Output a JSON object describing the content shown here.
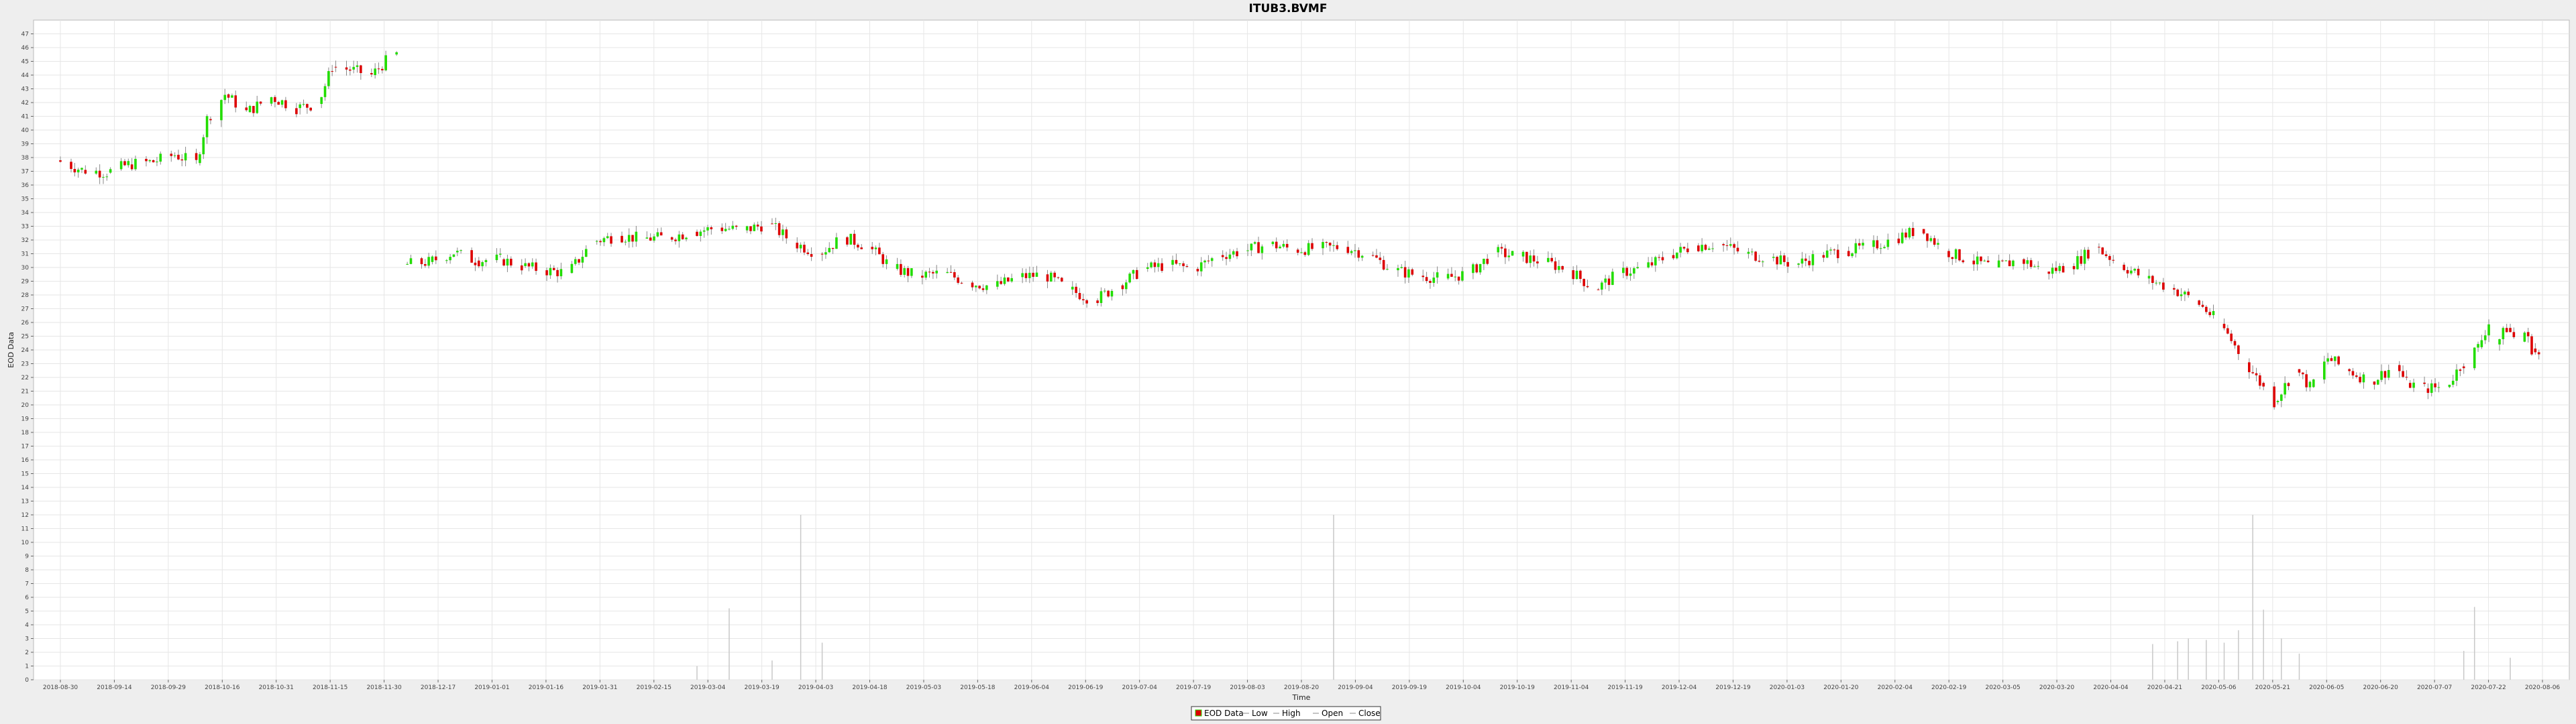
{
  "chart_data": {
    "type": "candlestick",
    "title": "ITUB3.BVMF",
    "xlabel": "Time",
    "ylabel": "EOD Data",
    "ylim": [
      0,
      48
    ],
    "yticks": [
      0,
      1,
      2,
      3,
      4,
      5,
      6,
      7,
      8,
      9,
      10,
      11,
      12,
      13,
      14,
      15,
      16,
      17,
      18,
      19,
      20,
      21,
      22,
      23,
      24,
      25,
      26,
      27,
      28,
      29,
      30,
      31,
      32,
      33,
      34,
      35,
      36,
      37,
      38,
      39,
      40,
      41,
      42,
      43,
      44,
      45,
      46,
      47
    ],
    "xlim": [
      "2018-09-21",
      "2020-08-15"
    ],
    "xticks": [
      "2018-08-30",
      "2018-09-14",
      "2018-09-29",
      "2018-10-16",
      "2018-10-31",
      "2018-11-15",
      "2018-11-30",
      "2018-12-17",
      "2019-01-01",
      "2019-01-16",
      "2019-01-31",
      "2019-02-15",
      "2019-03-04",
      "2019-03-19",
      "2019-04-03",
      "2019-04-18",
      "2019-05-03",
      "2019-05-18",
      "2019-06-04",
      "2019-06-19",
      "2019-07-04",
      "2019-07-19",
      "2019-08-03",
      "2019-08-20",
      "2019-09-04",
      "2019-09-19",
      "2019-10-04",
      "2019-10-19",
      "2019-11-04",
      "2019-11-19",
      "2019-12-04",
      "2019-12-19",
      "2020-01-03",
      "2020-01-20",
      "2020-02-04",
      "2020-02-19",
      "2020-03-05",
      "2020-03-20",
      "2020-04-04",
      "2020-04-21",
      "2020-05-06",
      "2020-05-21",
      "2020-06-05",
      "2020-06-20",
      "2020-07-07",
      "2020-07-22",
      "2020-08-06"
    ],
    "price_series": [
      {
        "date": "2018-09-21",
        "close": 37.8
      },
      {
        "date": "2018-09-28",
        "close": 37.1
      },
      {
        "date": "2018-10-05",
        "close": 36.9
      },
      {
        "date": "2018-10-11",
        "close": 37.5
      },
      {
        "date": "2018-10-18",
        "close": 37.7
      },
      {
        "date": "2018-10-24",
        "close": 38.2
      },
      {
        "date": "2018-10-30",
        "close": 37.6
      },
      {
        "date": "2018-11-02",
        "close": 40.8
      },
      {
        "date": "2018-11-07",
        "close": 42.6
      },
      {
        "date": "2018-11-13",
        "close": 41.3
      },
      {
        "date": "2018-11-20",
        "close": 42.4
      },
      {
        "date": "2018-11-27",
        "close": 41.6
      },
      {
        "date": "2018-12-03",
        "close": 41.9
      },
      {
        "date": "2018-12-07",
        "close": 44.6
      },
      {
        "date": "2018-12-12",
        "close": 44.4
      },
      {
        "date": "2018-12-18",
        "close": 44.0
      },
      {
        "date": "2018-12-24",
        "close": 45.5
      },
      {
        "date": "2018-12-27",
        "close": 30.2
      },
      {
        "date": "2019-01-03",
        "close": 30.4
      },
      {
        "date": "2019-01-10",
        "close": 31.1
      },
      {
        "date": "2019-01-16",
        "close": 30.5
      },
      {
        "date": "2019-01-23",
        "close": 30.6
      },
      {
        "date": "2019-01-29",
        "close": 30.1
      },
      {
        "date": "2019-02-04",
        "close": 29.8
      },
      {
        "date": "2019-02-11",
        "close": 29.6
      },
      {
        "date": "2019-02-18",
        "close": 31.9
      },
      {
        "date": "2019-02-25",
        "close": 32.3
      },
      {
        "date": "2019-03-04",
        "close": 32.1
      },
      {
        "date": "2019-03-11",
        "close": 32.2
      },
      {
        "date": "2019-03-18",
        "close": 32.6
      },
      {
        "date": "2019-03-25",
        "close": 32.9
      },
      {
        "date": "2019-04-01",
        "close": 32.7
      },
      {
        "date": "2019-04-08",
        "close": 33.2
      },
      {
        "date": "2019-04-15",
        "close": 31.8
      },
      {
        "date": "2019-04-22",
        "close": 31.0
      },
      {
        "date": "2019-04-29",
        "close": 32.2
      },
      {
        "date": "2019-05-06",
        "close": 31.5
      },
      {
        "date": "2019-05-13",
        "close": 29.9
      },
      {
        "date": "2019-05-20",
        "close": 29.4
      },
      {
        "date": "2019-05-27",
        "close": 29.6
      },
      {
        "date": "2019-06-03",
        "close": 28.9
      },
      {
        "date": "2019-06-10",
        "close": 28.6
      },
      {
        "date": "2019-06-17",
        "close": 29.3
      },
      {
        "date": "2019-06-24",
        "close": 29.5
      },
      {
        "date": "2019-07-01",
        "close": 28.4
      },
      {
        "date": "2019-07-08",
        "close": 27.6
      },
      {
        "date": "2019-07-15",
        "close": 28.7
      },
      {
        "date": "2019-07-22",
        "close": 29.9
      },
      {
        "date": "2019-07-29",
        "close": 30.2
      },
      {
        "date": "2019-08-05",
        "close": 29.9
      },
      {
        "date": "2019-08-12",
        "close": 30.9
      },
      {
        "date": "2019-08-19",
        "close": 31.2
      },
      {
        "date": "2019-08-26",
        "close": 31.7
      },
      {
        "date": "2019-09-02",
        "close": 31.3
      },
      {
        "date": "2019-09-09",
        "close": 31.4
      },
      {
        "date": "2019-09-16",
        "close": 31.5
      },
      {
        "date": "2019-09-23",
        "close": 30.9
      },
      {
        "date": "2019-09-30",
        "close": 29.8
      },
      {
        "date": "2019-10-07",
        "close": 29.4
      },
      {
        "date": "2019-10-14",
        "close": 29.2
      },
      {
        "date": "2019-10-21",
        "close": 29.6
      },
      {
        "date": "2019-10-28",
        "close": 31.1
      },
      {
        "date": "2019-11-04",
        "close": 30.8
      },
      {
        "date": "2019-11-11",
        "close": 30.4
      },
      {
        "date": "2019-11-18",
        "close": 29.8
      },
      {
        "date": "2019-11-25",
        "close": 28.4
      },
      {
        "date": "2019-12-02",
        "close": 29.6
      },
      {
        "date": "2019-12-09",
        "close": 30.0
      },
      {
        "date": "2019-12-16",
        "close": 30.9
      },
      {
        "date": "2019-12-23",
        "close": 31.6
      },
      {
        "date": "2019-12-30",
        "close": 31.7
      },
      {
        "date": "2020-01-06",
        "close": 31.0
      },
      {
        "date": "2020-01-13",
        "close": 30.7
      },
      {
        "date": "2020-01-20",
        "close": 30.2
      },
      {
        "date": "2020-01-27",
        "close": 30.9
      },
      {
        "date": "2020-02-03",
        "close": 31.2
      },
      {
        "date": "2020-02-10",
        "close": 31.5
      },
      {
        "date": "2020-02-17",
        "close": 32.1
      },
      {
        "date": "2020-02-24",
        "close": 32.8
      },
      {
        "date": "2020-03-02",
        "close": 31.2
      },
      {
        "date": "2020-03-09",
        "close": 30.5
      },
      {
        "date": "2020-03-16",
        "close": 30.0
      },
      {
        "date": "2020-03-23",
        "close": 30.6
      },
      {
        "date": "2020-03-30",
        "close": 29.7
      },
      {
        "date": "2020-04-06",
        "close": 30.1
      },
      {
        "date": "2020-04-13",
        "close": 31.5
      },
      {
        "date": "2020-04-20",
        "close": 30.2
      },
      {
        "date": "2020-04-27",
        "close": 29.2
      },
      {
        "date": "2020-05-04",
        "close": 28.5
      },
      {
        "date": "2020-05-11",
        "close": 27.6
      },
      {
        "date": "2020-05-18",
        "close": 25.9
      },
      {
        "date": "2020-05-25",
        "close": 23.1
      },
      {
        "date": "2020-05-29",
        "close": 21.6
      },
      {
        "date": "2020-06-02",
        "close": 20.2
      },
      {
        "date": "2020-06-08",
        "close": 22.6
      },
      {
        "date": "2020-06-12",
        "close": 21.3
      },
      {
        "date": "2020-06-17",
        "close": 23.4
      },
      {
        "date": "2020-06-22",
        "close": 22.6
      },
      {
        "date": "2020-06-29",
        "close": 21.7
      },
      {
        "date": "2020-07-06",
        "close": 22.9
      },
      {
        "date": "2020-07-09",
        "close": 21.6
      },
      {
        "date": "2020-07-14",
        "close": 21.2
      },
      {
        "date": "2020-07-20",
        "close": 21.3
      },
      {
        "date": "2020-07-24",
        "close": 22.8
      },
      {
        "date": "2020-07-29",
        "close": 24.2
      },
      {
        "date": "2020-08-01",
        "close": 26.0
      },
      {
        "date": "2020-08-03",
        "close": 24.4
      },
      {
        "date": "2020-08-06",
        "close": 25.6
      },
      {
        "date": "2020-08-09",
        "close": 24.6
      },
      {
        "date": "2020-08-11",
        "close": 25.3
      },
      {
        "date": "2020-08-13",
        "close": 24.1
      },
      {
        "date": "2020-08-15",
        "close": 23.6
      }
    ],
    "volume_series": [
      {
        "date": "2019-03-18",
        "value": 1.0
      },
      {
        "date": "2019-03-27",
        "value": 5.2
      },
      {
        "date": "2019-04-08",
        "value": 1.4
      },
      {
        "date": "2019-04-16",
        "value": 12.0
      },
      {
        "date": "2019-04-22",
        "value": 2.7
      },
      {
        "date": "2019-09-12",
        "value": 12.0
      },
      {
        "date": "2020-04-28",
        "value": 2.6
      },
      {
        "date": "2020-05-05",
        "value": 2.8
      },
      {
        "date": "2020-05-08",
        "value": 3.0
      },
      {
        "date": "2020-05-13",
        "value": 2.9
      },
      {
        "date": "2020-05-18",
        "value": 2.7
      },
      {
        "date": "2020-05-22",
        "value": 3.6
      },
      {
        "date": "2020-05-26",
        "value": 12.0
      },
      {
        "date": "2020-05-29",
        "value": 5.1
      },
      {
        "date": "2020-06-03",
        "value": 3.0
      },
      {
        "date": "2020-06-08",
        "value": 1.9
      },
      {
        "date": "2020-07-24",
        "value": 2.1
      },
      {
        "date": "2020-07-27",
        "value": 5.3
      },
      {
        "date": "2020-08-06",
        "value": 1.6
      }
    ],
    "legend": {
      "position": "bottom",
      "entries": [
        "EOD Data",
        "Low",
        "High",
        "Open",
        "Close"
      ]
    },
    "colors": {
      "up": "#22dd00",
      "down": "#dd0000",
      "wick": "#888888",
      "plot_bg": "#ffffff",
      "grid": "#e6e6e6",
      "volume": "#c8c8c8"
    }
  }
}
